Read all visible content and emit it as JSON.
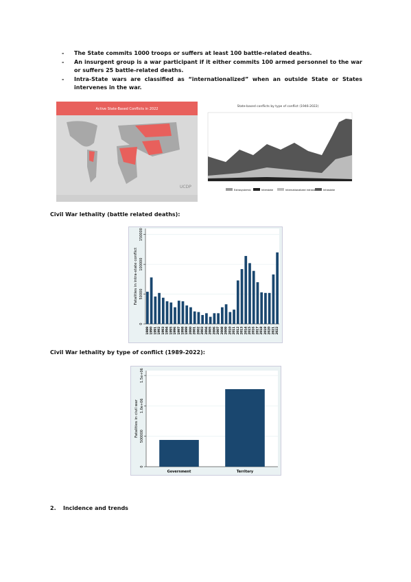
{
  "bullet_marker": "-",
  "bullets": [
    "The State commits 1000 troops or suffers at least 100 battle-related deaths.",
    "An insurgent group is a war participant if it either commits 100 armed personnel to the war or suffers 25 battle-related deaths.",
    "Intra-State wars are classified as “internationalized” when an outside State or States intervenes in the war."
  ],
  "figures": [
    {
      "title": "Active State-Based Conflicts in 2022",
      "logo": "UCDP"
    },
    {
      "title": "State-based conflicts by type of conflict (1946-2022)",
      "legend": [
        "Extrasystemic",
        "Interstate",
        "Internationalized intrastate",
        "Intrastate"
      ]
    }
  ],
  "headings": [
    "Civil War lethality (battle related deaths):",
    "Civil War lethality by type of conflict (1989-2022):"
  ],
  "charts": [
    {
      "type": "bar",
      "ylabel": "Fatalities in intra-state conflict",
      "color": "#1a476f",
      "categories": [
        "1989",
        "1990",
        "1991",
        "1992",
        "1993",
        "1994",
        "1995",
        "1996",
        "1997",
        "1998",
        "1999",
        "2000",
        "2001",
        "2002",
        "2003",
        "2004",
        "2005",
        "2006",
        "2007",
        "2008",
        "2009",
        "2010",
        "2011",
        "2012",
        "2013",
        "2014",
        "2015",
        "2016",
        "2017",
        "2018",
        "2019",
        "2020",
        "2021",
        "2022"
      ],
      "values": [
        54000,
        78000,
        46000,
        52000,
        44000,
        38000,
        36000,
        28000,
        39000,
        38000,
        31000,
        28000,
        21000,
        20000,
        15000,
        18000,
        12000,
        18000,
        18000,
        28000,
        33000,
        20000,
        24000,
        73000,
        92000,
        114000,
        102000,
        89000,
        70000,
        53000,
        52000,
        52000,
        83000,
        120000
      ],
      "ylim": [
        0,
        160000
      ],
      "yticks": [
        0,
        50000,
        100000,
        150000
      ]
    },
    {
      "type": "bar",
      "ylabel": "Fatalities in civil war",
      "color": "#1a476f",
      "categories": [
        "Government",
        "Territory"
      ],
      "values": [
        440000,
        1275000
      ],
      "ylim": [
        0,
        1580000
      ],
      "yticks": [
        0,
        500000,
        {
          "value": 1000000,
          "label": "1.0e+06"
        },
        {
          "value": 1500000,
          "label": "1.5e+06"
        }
      ]
    }
  ],
  "section": {
    "number": "2.",
    "title": "Incidence and trends"
  }
}
